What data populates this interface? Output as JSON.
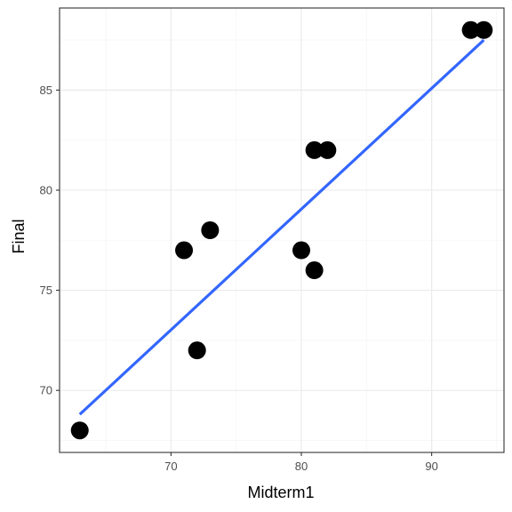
{
  "chart_data": {
    "type": "scatter",
    "title": "",
    "xlabel": "Midterm1",
    "ylabel": "Final",
    "xlim": [
      61.45,
      95.55
    ],
    "ylim": [
      66.9,
      89.1
    ],
    "x_ticks": [
      70,
      80,
      90
    ],
    "y_ticks": [
      70,
      75,
      80,
      85
    ],
    "x_minor_ticks": [
      65,
      75,
      85,
      95
    ],
    "y_minor_ticks": [
      67.5,
      72.5,
      77.5,
      82.5,
      87.5
    ],
    "x_tick_labels": [
      "70",
      "80",
      "90"
    ],
    "y_tick_labels": [
      "70",
      "75",
      "80",
      "85"
    ],
    "grid": true,
    "legend": "none",
    "points": [
      {
        "x": 63,
        "y": 68
      },
      {
        "x": 71,
        "y": 77
      },
      {
        "x": 72,
        "y": 72
      },
      {
        "x": 73,
        "y": 78
      },
      {
        "x": 80,
        "y": 77
      },
      {
        "x": 81,
        "y": 76
      },
      {
        "x": 81,
        "y": 82
      },
      {
        "x": 82,
        "y": 82
      },
      {
        "x": 93,
        "y": 88
      },
      {
        "x": 94,
        "y": 88
      }
    ],
    "fit_line": {
      "method": "lm",
      "start": {
        "x": 63,
        "y": 68.8
      },
      "end": {
        "x": 94,
        "y": 87.5
      }
    },
    "colors": {
      "points": "#000000",
      "fit_line": "#3366ff",
      "grid_major": "#ebebeb",
      "grid_minor": "#f5f5f5",
      "panel_border": "#333333"
    }
  }
}
